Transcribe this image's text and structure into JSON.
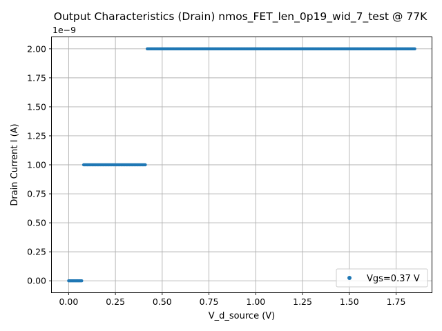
{
  "chart_data": {
    "type": "scatter",
    "title": "Output Characteristics (Drain) nmos_FET_len_0p19_wid_7_test @ 77K",
    "xlabel": "V_d_source (V)",
    "ylabel": "Drain Current I (A)",
    "y_offset_label": "1e−9",
    "xlim": [
      -0.09,
      1.94
    ],
    "ylim": [
      -0.1,
      2.1
    ],
    "x_ticks": [
      0.0,
      0.25,
      0.5,
      0.75,
      1.0,
      1.25,
      1.5,
      1.75
    ],
    "x_tick_labels": [
      "0.00",
      "0.25",
      "0.50",
      "0.75",
      "1.00",
      "1.25",
      "1.50",
      "1.75"
    ],
    "y_ticks": [
      0.0,
      0.25,
      0.5,
      0.75,
      1.0,
      1.25,
      1.5,
      1.75,
      2.0
    ],
    "y_tick_labels": [
      "0.00",
      "0.25",
      "0.50",
      "0.75",
      "1.00",
      "1.25",
      "1.50",
      "1.75",
      "2.00"
    ],
    "y_scale_factor": 1e-09,
    "grid": true,
    "legend_position": "bottom-right",
    "color": "#1f77b4",
    "series": [
      {
        "name": "Vgs=0.37 V",
        "segments": [
          {
            "x_start": 0.0,
            "x_end": 0.07,
            "y": 0.0
          },
          {
            "x_start": 0.08,
            "x_end": 0.41,
            "y": 1e-09
          },
          {
            "x_start": 0.42,
            "x_end": 1.85,
            "y": 2e-09
          }
        ],
        "x_step": 0.005
      }
    ]
  }
}
